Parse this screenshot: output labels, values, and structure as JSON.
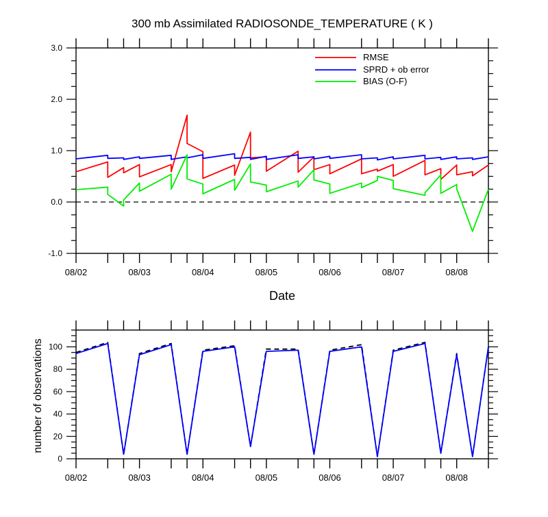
{
  "chart_data": [
    {
      "type": "line",
      "title": "300 mb Assimilated RADIOSONDE_TEMPERATURE ( K )",
      "xlabel": "Date",
      "ylabel": "",
      "xlim": [
        0,
        6.5
      ],
      "ylim": [
        -1.0,
        3.0
      ],
      "x_ticks": [
        0,
        1,
        2,
        3,
        4,
        5,
        6
      ],
      "x_tick_labels": [
        "08/02",
        "08/03",
        "08/04",
        "08/05",
        "08/06",
        "08/07",
        "08/08"
      ],
      "y_ticks": [
        -1.0,
        0.0,
        1.0,
        2.0,
        3.0
      ],
      "y_tick_labels": [
        "-1.0",
        "0.0",
        "1.0",
        "2.0",
        "3.0"
      ],
      "grid": false,
      "legend_position": "top-right",
      "reference_line": {
        "y": 0.0,
        "style": "dashed"
      },
      "series": [
        {
          "name": "RMSE",
          "color": "#ff0000",
          "points": [
            [
              0,
              0.59
            ],
            [
              0.5,
              0.78
            ],
            [
              0.5,
              0.48
            ],
            [
              0.75,
              0.67
            ],
            [
              0.75,
              0.57
            ],
            [
              1,
              0.73
            ],
            [
              1,
              0.49
            ],
            [
              1.5,
              0.73
            ],
            [
              1.5,
              0.59
            ],
            [
              1.75,
              1.69
            ],
            [
              1.75,
              1.14
            ],
            [
              2,
              0.98
            ],
            [
              2,
              0.46
            ],
            [
              2.5,
              0.72
            ],
            [
              2.5,
              0.52
            ],
            [
              2.75,
              1.36
            ],
            [
              2.75,
              0.86
            ],
            [
              3,
              0.88
            ],
            [
              3,
              0.6
            ],
            [
              3.5,
              0.99
            ],
            [
              3.5,
              0.58
            ],
            [
              3.75,
              0.88
            ],
            [
              3.75,
              0.63
            ],
            [
              4,
              0.73
            ],
            [
              4,
              0.55
            ],
            [
              4.5,
              0.84
            ],
            [
              4.5,
              0.55
            ],
            [
              4.75,
              0.64
            ],
            [
              4.75,
              0.6
            ],
            [
              5,
              0.73
            ],
            [
              5,
              0.5
            ],
            [
              5.5,
              0.81
            ],
            [
              5.5,
              0.53
            ],
            [
              5.75,
              0.65
            ],
            [
              5.75,
              0.44
            ],
            [
              6,
              0.72
            ],
            [
              6,
              0.53
            ],
            [
              6.25,
              0.59
            ],
            [
              6.25,
              0.51
            ],
            [
              6.5,
              0.72
            ]
          ]
        },
        {
          "name": "SPRD + ob error",
          "color": "#0000ff",
          "points": [
            [
              0,
              0.84
            ],
            [
              0.5,
              0.91
            ],
            [
              0.5,
              0.85
            ],
            [
              0.75,
              0.86
            ],
            [
              0.75,
              0.83
            ],
            [
              1,
              0.88
            ],
            [
              1,
              0.85
            ],
            [
              1.5,
              0.91
            ],
            [
              1.5,
              0.83
            ],
            [
              1.75,
              0.88
            ],
            [
              1.75,
              0.86
            ],
            [
              2,
              0.92
            ],
            [
              2,
              0.85
            ],
            [
              2.5,
              0.94
            ],
            [
              2.5,
              0.85
            ],
            [
              2.75,
              0.87
            ],
            [
              2.75,
              0.83
            ],
            [
              3,
              0.89
            ],
            [
              3,
              0.83
            ],
            [
              3.5,
              0.92
            ],
            [
              3.5,
              0.85
            ],
            [
              3.75,
              0.88
            ],
            [
              3.75,
              0.84
            ],
            [
              4,
              0.89
            ],
            [
              4,
              0.85
            ],
            [
              4.5,
              0.92
            ],
            [
              4.5,
              0.84
            ],
            [
              4.75,
              0.86
            ],
            [
              4.75,
              0.82
            ],
            [
              5,
              0.88
            ],
            [
              5,
              0.84
            ],
            [
              5.5,
              0.91
            ],
            [
              5.5,
              0.84
            ],
            [
              5.75,
              0.87
            ],
            [
              5.75,
              0.83
            ],
            [
              6,
              0.88
            ],
            [
              6,
              0.84
            ],
            [
              6.25,
              0.86
            ],
            [
              6.25,
              0.83
            ],
            [
              6.5,
              0.88
            ]
          ]
        },
        {
          "name": "BIAS (O-F)",
          "color": "#00ee00",
          "points": [
            [
              0,
              0.24
            ],
            [
              0.5,
              0.29
            ],
            [
              0.5,
              0.15
            ],
            [
              0.75,
              -0.08
            ],
            [
              0.75,
              0.04
            ],
            [
              1,
              0.37
            ],
            [
              1,
              0.21
            ],
            [
              1.5,
              0.54
            ],
            [
              1.5,
              0.25
            ],
            [
              1.75,
              0.92
            ],
            [
              1.75,
              0.45
            ],
            [
              2,
              0.35
            ],
            [
              2,
              0.16
            ],
            [
              2.5,
              0.44
            ],
            [
              2.5,
              0.23
            ],
            [
              2.75,
              0.74
            ],
            [
              2.75,
              0.39
            ],
            [
              3,
              0.33
            ],
            [
              3,
              0.2
            ],
            [
              3.5,
              0.41
            ],
            [
              3.5,
              0.29
            ],
            [
              3.75,
              0.63
            ],
            [
              3.75,
              0.43
            ],
            [
              4,
              0.35
            ],
            [
              4,
              0.17
            ],
            [
              4.5,
              0.37
            ],
            [
              4.5,
              0.28
            ],
            [
              4.75,
              0.42
            ],
            [
              4.75,
              0.5
            ],
            [
              5,
              0.42
            ],
            [
              5,
              0.26
            ],
            [
              5.5,
              0.13
            ],
            [
              5.5,
              0.18
            ],
            [
              5.75,
              0.53
            ],
            [
              5.75,
              0.17
            ],
            [
              6,
              0.34
            ],
            [
              6,
              0.26
            ],
            [
              6.25,
              -0.57
            ],
            [
              6.5,
              0.25
            ]
          ]
        }
      ]
    },
    {
      "type": "line",
      "title": "",
      "xlabel": "",
      "ylabel": "number of observations",
      "xlim": [
        0,
        6.5
      ],
      "ylim": [
        0,
        115
      ],
      "x_ticks": [
        0,
        1,
        2,
        3,
        4,
        5,
        6
      ],
      "x_tick_labels": [
        "08/02",
        "08/03",
        "08/04",
        "08/05",
        "08/06",
        "08/07",
        "08/08"
      ],
      "y_ticks": [
        0,
        20,
        40,
        60,
        80,
        100
      ],
      "y_tick_labels": [
        "0",
        "20",
        "40",
        "60",
        "80",
        "100"
      ],
      "grid": false,
      "series": [
        {
          "color": "#000000",
          "style": "dashed",
          "points": [
            [
              0,
              95
            ],
            [
              0.5,
              104
            ],
            [
              0.75,
              4
            ],
            [
              1,
              94
            ],
            [
              1.5,
              103
            ],
            [
              1.75,
              4
            ],
            [
              2,
              97
            ],
            [
              2.5,
              101
            ],
            [
              2.75,
              11
            ],
            [
              3,
              98
            ],
            [
              3.5,
              98
            ],
            [
              3.75,
              4
            ],
            [
              4,
              97
            ],
            [
              4.5,
              102
            ],
            [
              4.75,
              2
            ],
            [
              5,
              97
            ],
            [
              5.5,
              104
            ],
            [
              5.75,
              5
            ],
            [
              6,
              94
            ],
            [
              6.25,
              2
            ],
            [
              6.5,
              100
            ]
          ]
        },
        {
          "color": "#0000ff",
          "style": "solid",
          "points": [
            [
              0,
              94
            ],
            [
              0.5,
              103
            ],
            [
              0.75,
              4
            ],
            [
              1,
              93
            ],
            [
              1.5,
              102
            ],
            [
              1.75,
              4
            ],
            [
              2,
              96
            ],
            [
              2.5,
              100
            ],
            [
              2.75,
              11
            ],
            [
              3,
              96
            ],
            [
              3.5,
              97
            ],
            [
              3.75,
              4
            ],
            [
              4,
              96
            ],
            [
              4.5,
              100
            ],
            [
              4.75,
              2
            ],
            [
              5,
              96
            ],
            [
              5.5,
              103
            ],
            [
              5.75,
              5
            ],
            [
              6,
              93
            ],
            [
              6.25,
              2
            ],
            [
              6.5,
              100
            ]
          ]
        }
      ]
    }
  ]
}
